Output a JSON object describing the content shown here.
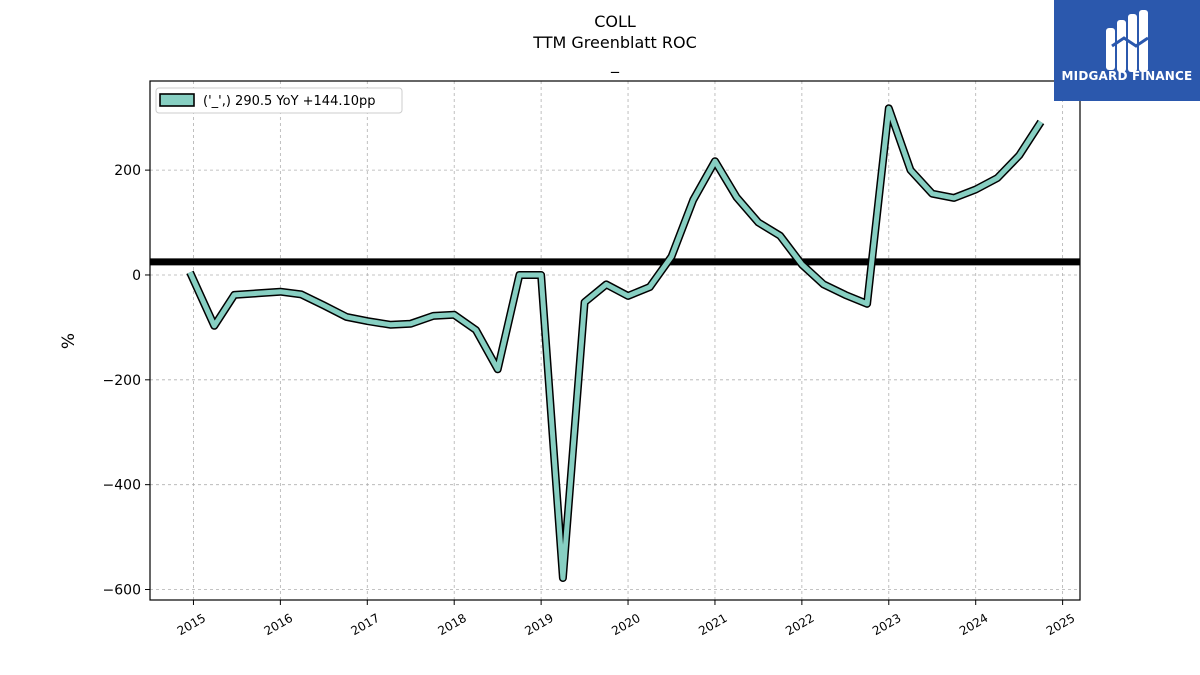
{
  "chart_data": {
    "type": "line",
    "title_lines": [
      "COLL",
      "TTM Greenblatt ROC",
      "_"
    ],
    "ylabel": "%",
    "xlabel": "",
    "ylim": [
      -620,
      370
    ],
    "yticks": [
      200,
      0,
      -200,
      -400,
      -600
    ],
    "ytick_labels": [
      "200",
      "0",
      "−200",
      "−400",
      "−600"
    ],
    "xlim": [
      2014.5,
      2025.2
    ],
    "xticks": [
      2015,
      2016,
      2017,
      2018,
      2019,
      2020,
      2021,
      2022,
      2023,
      2024,
      2025
    ],
    "xtick_labels": [
      "2015",
      "2016",
      "2017",
      "2018",
      "2019",
      "2020",
      "2021",
      "2022",
      "2023",
      "2024",
      "2025"
    ],
    "grid": true,
    "legend_position": "top-left",
    "series": [
      {
        "name": "('_',) 290.5 YoY +144.10pp",
        "color": "#87cfc2",
        "x": [
          2014.96,
          2015.24,
          2015.47,
          2015.74,
          2016.0,
          2016.24,
          2016.5,
          2016.76,
          2017.0,
          2017.27,
          2017.5,
          2017.76,
          2018.0,
          2018.25,
          2018.5,
          2018.75,
          2019.0,
          2019.25,
          2019.5,
          2019.75,
          2020.0,
          2020.25,
          2020.5,
          2020.75,
          2021.0,
          2021.25,
          2021.5,
          2021.75,
          2022.0,
          2022.25,
          2022.5,
          2022.75,
          2023.0,
          2023.25,
          2023.5,
          2023.75,
          2024.0,
          2024.25,
          2024.5,
          2024.75
        ],
        "y": [
          5,
          -97,
          -38,
          -35,
          -32,
          -37,
          -58,
          -80,
          -88,
          -95,
          -93,
          -78,
          -76,
          -105,
          -180,
          0,
          0,
          -578,
          -52,
          -18,
          -40,
          -23,
          35,
          143,
          217,
          148,
          100,
          75,
          20,
          -18,
          -38,
          -55,
          318,
          200,
          155,
          147,
          163,
          185,
          228,
          292
        ]
      }
    ],
    "reference_line": {
      "y": 25,
      "color": "#000000"
    }
  },
  "logo": {
    "brand": "MIDGARD FINANCE",
    "icon": "midgard-m-logo-icon"
  }
}
